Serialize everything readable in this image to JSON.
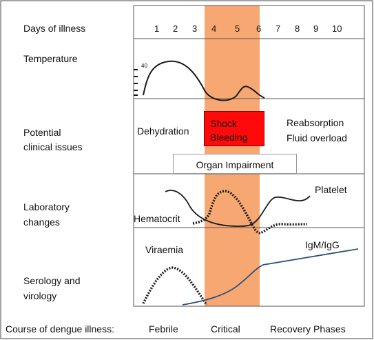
{
  "row_labels": {
    "days": "Days of illness",
    "temperature": "Temperature",
    "clinical_line1": "Potential",
    "clinical_line2": "clinical issues",
    "lab_line1": "Laboratory",
    "lab_line2": "changes",
    "sero_line1": "Serology and",
    "sero_line2": "virology"
  },
  "days": [
    "1",
    "2",
    "3",
    "4",
    "5",
    "6",
    "7",
    "8",
    "9",
    "10"
  ],
  "temperature_tick": "40",
  "clinical": {
    "dehydration": "Dehydration",
    "shock": "Shock",
    "bleeding": "Bleeding",
    "reabsorption": "Reabsorption",
    "fluid_overload": "Fluid overload",
    "organ": "Organ Impairment"
  },
  "lab": {
    "platelet": "Platelet",
    "hematocrit": "Hematocrit"
  },
  "serology": {
    "viraemia": "Viraemia",
    "igm": "IgM/IgG"
  },
  "footer": {
    "course": "Course of dengue illness:",
    "febrile": "Febrile",
    "critical": "Critical",
    "recovery": "Recovery Phases"
  },
  "colors": {
    "critical_band": "#f7a872",
    "shock_box": "#ff0a0a",
    "igm_line": "#2a4f7a",
    "curve": "#1a1a1a"
  }
}
